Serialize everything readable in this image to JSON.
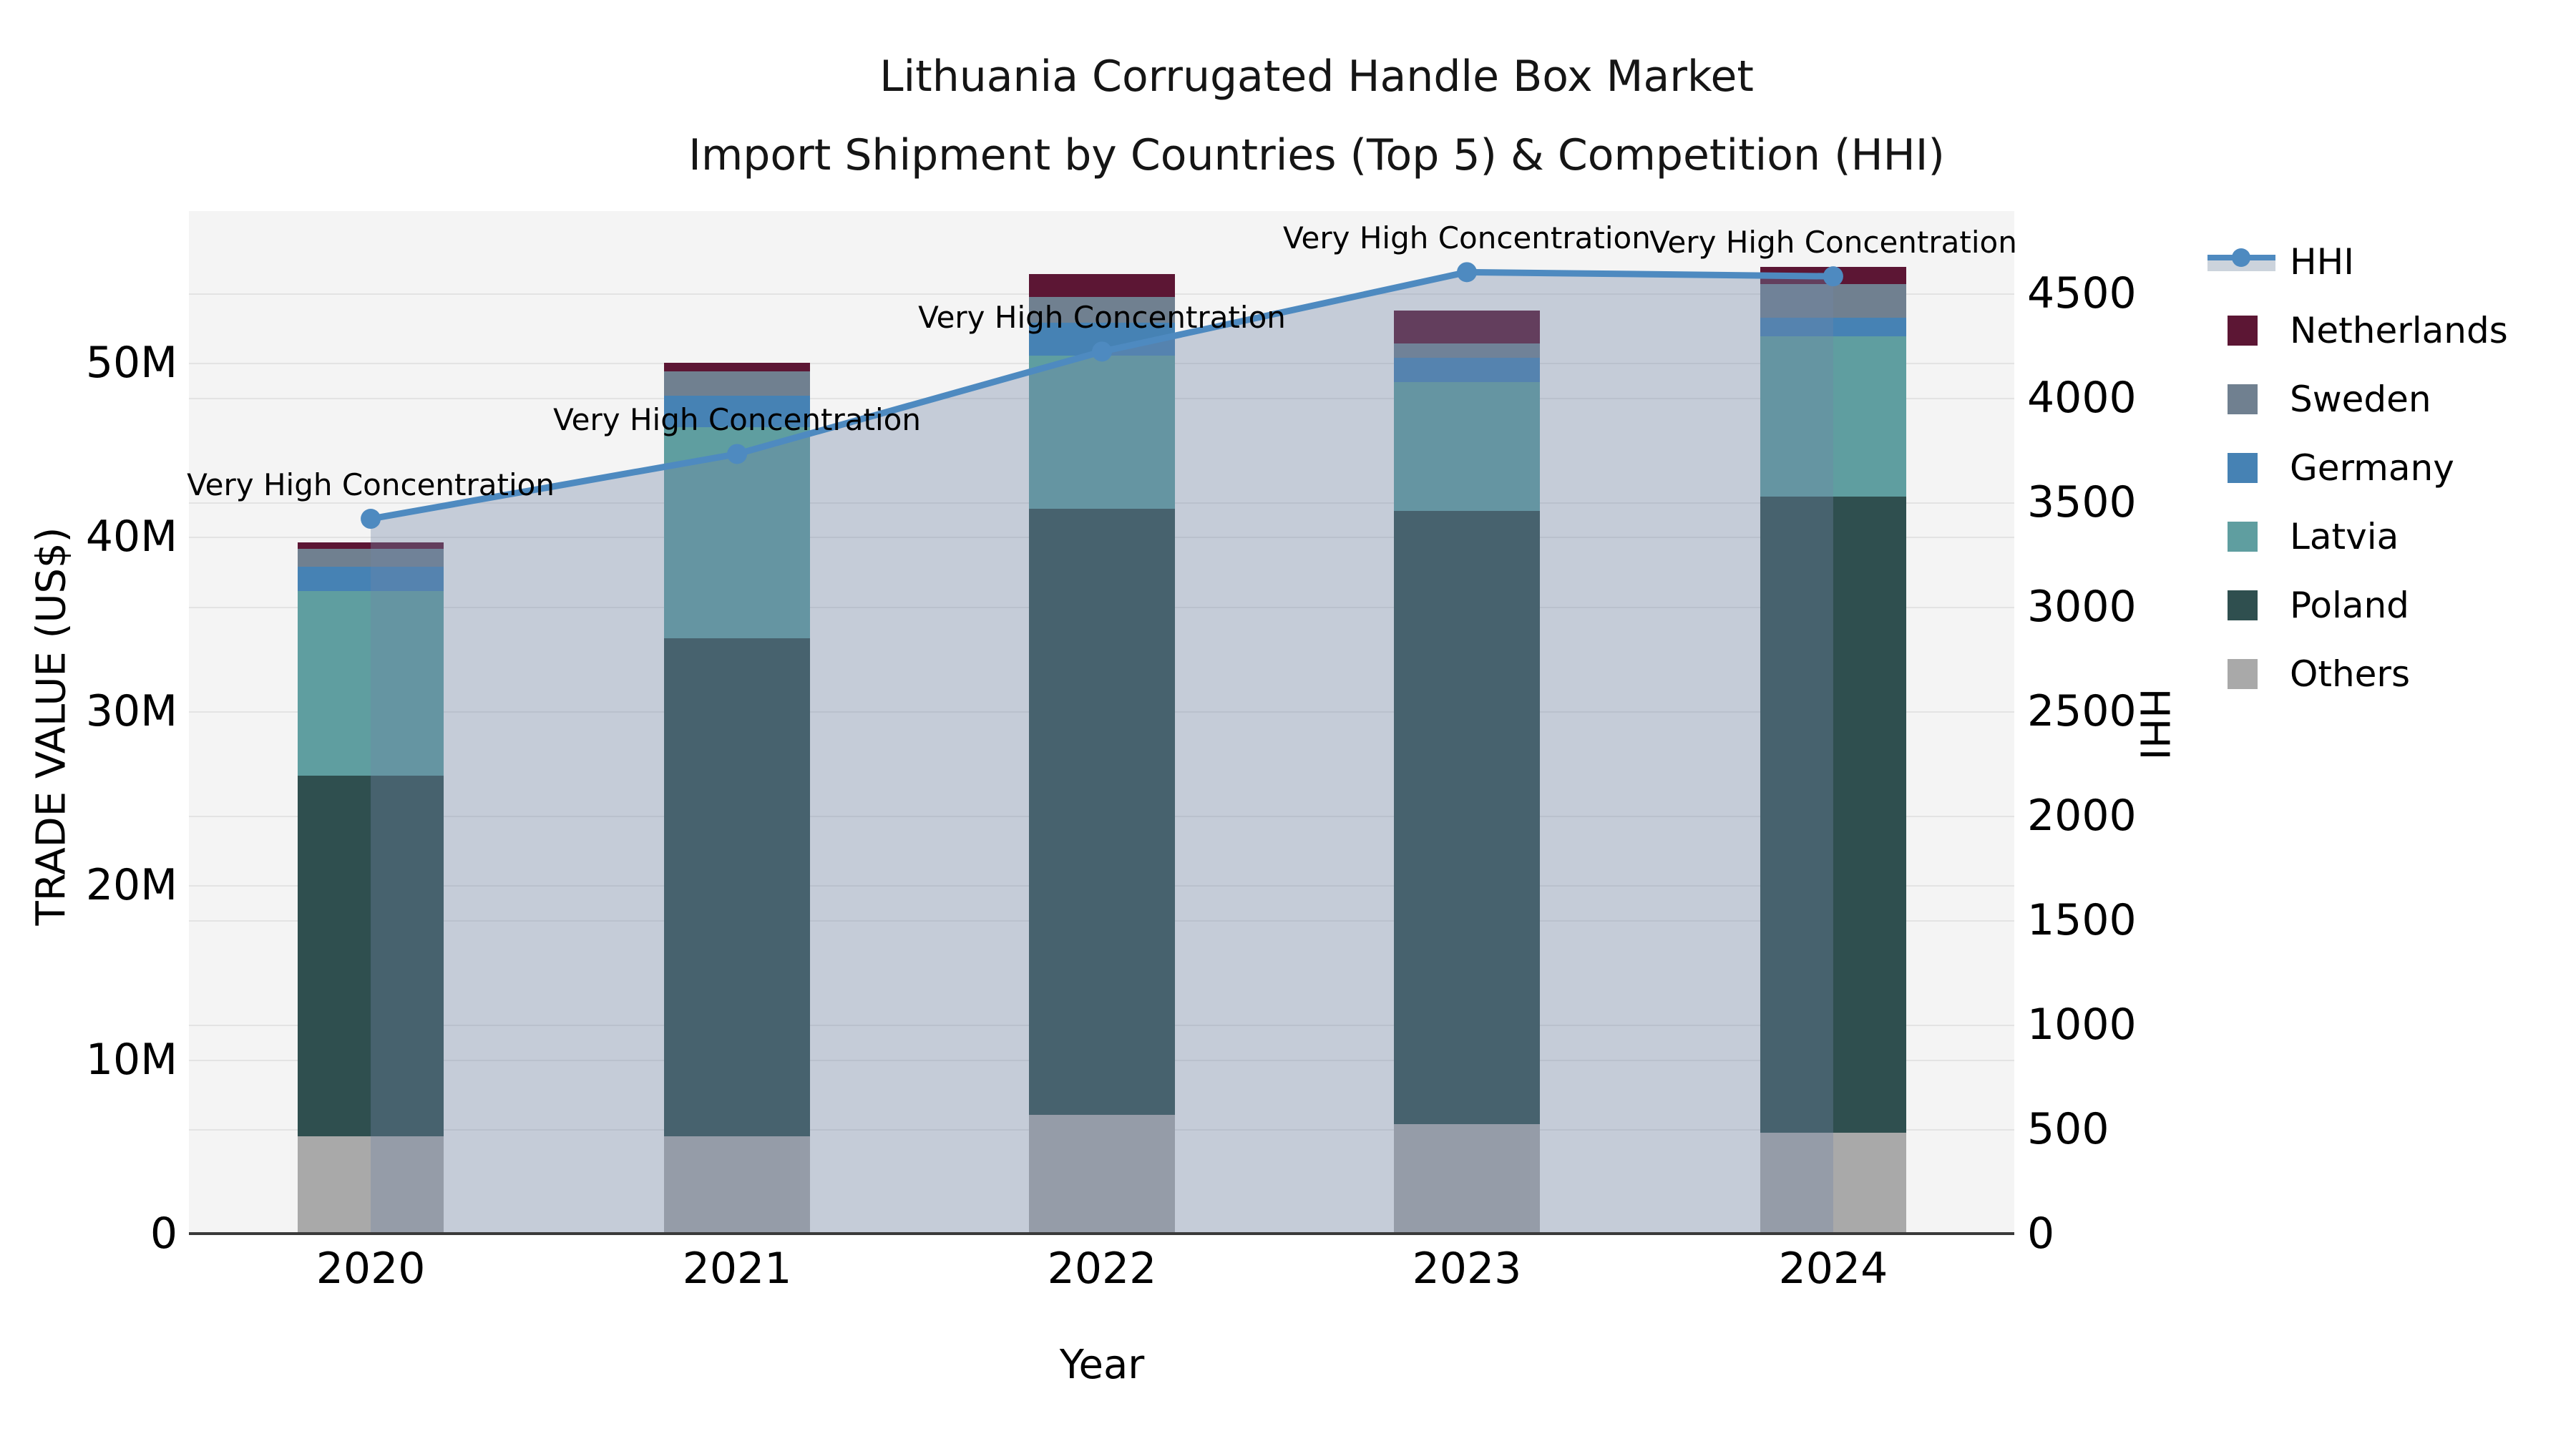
{
  "title": {
    "line1": "Lithuania Corrugated Handle Box Market",
    "line2": "Import Shipment by Countries (Top 5) & Competition (HHI)"
  },
  "axes": {
    "x": {
      "label": "Year",
      "ticks": [
        "2020",
        "2021",
        "2022",
        "2023",
        "2024"
      ]
    },
    "y_left": {
      "label": "TRADE VALUE (US$)",
      "ticks": [
        "0",
        "10M",
        "20M",
        "30M",
        "40M",
        "50M"
      ],
      "tick_values": [
        0,
        10,
        20,
        30,
        40,
        50
      ]
    },
    "y_right": {
      "label": "HHI",
      "ticks": [
        "0",
        "500",
        "1000",
        "1500",
        "2000",
        "2500",
        "3000",
        "3500",
        "4000",
        "4500"
      ],
      "tick_values": [
        0,
        500,
        1000,
        1500,
        2000,
        2500,
        3000,
        3500,
        4000,
        4500
      ]
    }
  },
  "legend": {
    "items": [
      {
        "label": "HHI",
        "type": "line",
        "color": "#4e8ac0"
      },
      {
        "label": "Netherlands",
        "type": "box",
        "color": "#5c1634"
      },
      {
        "label": "Sweden",
        "type": "box",
        "color": "#708090"
      },
      {
        "label": "Germany",
        "type": "box",
        "color": "#4682b4"
      },
      {
        "label": "Latvia",
        "type": "box",
        "color": "#5f9ea0"
      },
      {
        "label": "Poland",
        "type": "box",
        "color": "#2f4f4f"
      },
      {
        "label": "Others",
        "type": "box",
        "color": "#a9a9a9"
      }
    ]
  },
  "colors": {
    "hhi_line": "#4e8ac0",
    "hhi_area_fill": "rgba(115,132,165,0.36)",
    "plot_bg": "#f4f4f4",
    "grid": "#e3e3e3",
    "axis_line": "#3a3a3a",
    "text": "#000000"
  },
  "chart_data": {
    "type": "combo: stacked bar (trade value) + line with area fill (HHI)",
    "categories": [
      "2020",
      "2021",
      "2022",
      "2023",
      "2024"
    ],
    "bar_unit": "million US$",
    "stack_order_bottom_to_top": [
      "Others",
      "Poland",
      "Latvia",
      "Germany",
      "Sweden",
      "Netherlands"
    ],
    "series": [
      {
        "name": "Others",
        "color": "#a9a9a9",
        "values": [
          5.6,
          5.6,
          6.8,
          6.3,
          5.8
        ]
      },
      {
        "name": "Poland",
        "color": "#2f4f4f",
        "values": [
          20.7,
          28.6,
          34.8,
          35.2,
          36.5
        ]
      },
      {
        "name": "Latvia",
        "color": "#5f9ea0",
        "values": [
          10.6,
          12.1,
          8.8,
          7.4,
          9.2
        ]
      },
      {
        "name": "Germany",
        "color": "#4682b4",
        "values": [
          1.4,
          1.8,
          1.9,
          1.4,
          1.1
        ]
      },
      {
        "name": "Sweden",
        "color": "#708090",
        "values": [
          1.0,
          1.4,
          1.5,
          0.8,
          1.9
        ]
      },
      {
        "name": "Netherlands",
        "color": "#5c1634",
        "values": [
          0.4,
          0.5,
          1.3,
          1.9,
          1.0
        ]
      }
    ],
    "bar_totals": [
      39.7,
      50.0,
      55.1,
      53.0,
      55.5
    ],
    "hhi_series": {
      "name": "HHI",
      "color": "#4e8ac0",
      "values": [
        3420,
        3730,
        4220,
        4600,
        4580
      ],
      "point_annotations": [
        "Very High Concentration",
        "Very High Concentration",
        "Very High Concentration",
        "Very High Concentration",
        "Very High Concentration"
      ]
    },
    "xlabel": "Year",
    "ylabel_left": "TRADE VALUE (US$)",
    "ylabel_right": "HHI",
    "y_left_range_millions": [
      0,
      58.7
    ],
    "y_right_range": [
      0,
      4890
    ],
    "grid": true,
    "legend_position": "right"
  }
}
